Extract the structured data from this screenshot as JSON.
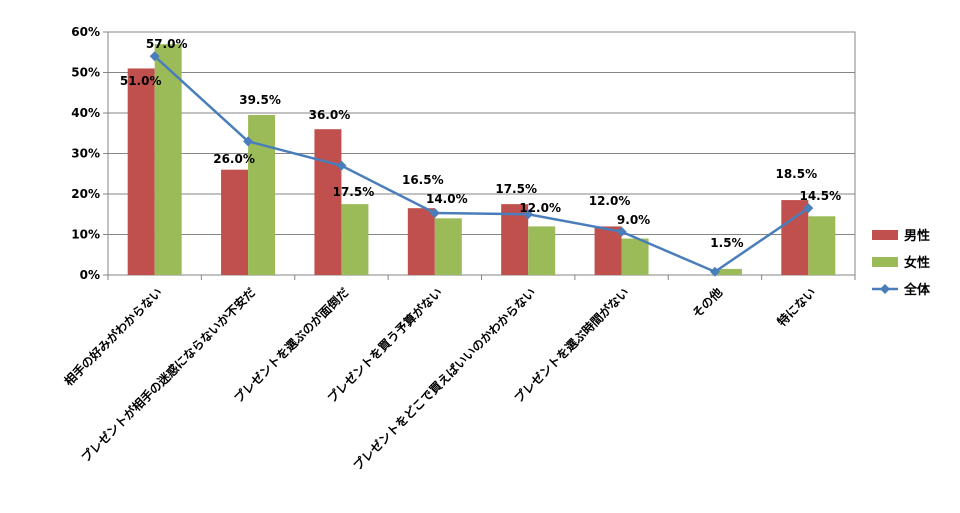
{
  "chart_data": {
    "type": "bar",
    "categories": [
      "相手の好みがわからない",
      "プレゼントが相手の迷惑にならないか不安だ",
      "プレゼントを選ぶのが面倒だ",
      "プレゼントを買う予算がない",
      "プレゼントをどこで買えばいいのかわからない",
      "プレゼントを選ぶ時間がない",
      "その他",
      "特にない"
    ],
    "series": [
      {
        "name": "男性",
        "kind": "bar",
        "color": "#c0504d",
        "values": [
          51.0,
          26.0,
          36.0,
          16.5,
          17.5,
          12.0,
          0.0,
          18.5
        ],
        "labels": [
          "51.0%",
          "26.0%",
          "36.0%",
          "16.5%",
          "17.5%",
          "12.0%",
          "",
          "18.5%"
        ]
      },
      {
        "name": "女性",
        "kind": "bar",
        "color": "#9bbb59",
        "values": [
          57.0,
          39.5,
          17.5,
          14.0,
          12.0,
          9.0,
          1.5,
          14.5
        ],
        "labels": [
          "57.0%",
          "39.5%",
          "17.5%",
          "14.0%",
          "12.0%",
          "9.0%",
          "1.5%",
          "14.5%"
        ]
      },
      {
        "name": "全体",
        "kind": "line",
        "color": "#4a7ebb",
        "values": [
          54.0,
          33.0,
          27.0,
          15.3,
          15.0,
          10.7,
          0.8,
          16.5
        ]
      }
    ],
    "yticks": [
      "0%",
      "10%",
      "20%",
      "30%",
      "40%",
      "50%",
      "60%"
    ],
    "ylim": [
      0,
      60
    ],
    "ystep": 10,
    "grid": true,
    "legend": "right"
  }
}
